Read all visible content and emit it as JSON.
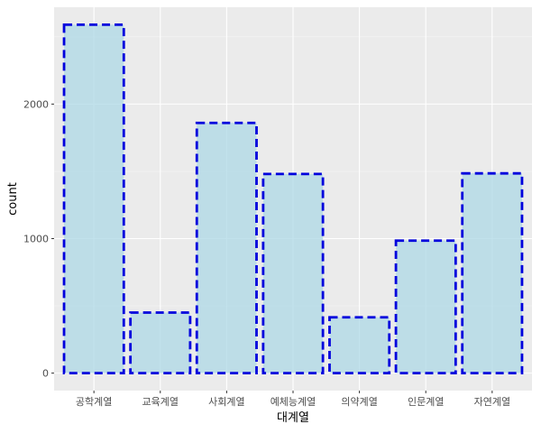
{
  "chart_data": {
    "type": "bar",
    "categories": [
      "공학계열",
      "교육계열",
      "사회계열",
      "예체능계열",
      "의약계열",
      "인문계열",
      "자연계열"
    ],
    "values": [
      2590,
      450,
      1860,
      1480,
      415,
      985,
      1485
    ],
    "xlabel": "대계열",
    "ylabel": "count",
    "ylim": [
      -130,
      2720
    ],
    "yticks": [
      0,
      1000,
      2000
    ],
    "grid": true,
    "colors": {
      "panel_background": "#ebebeb",
      "grid_major": "#ffffff",
      "grid_minor": "#f5f5f5",
      "bar_fill": "#add8e6",
      "bar_outline": "#0000dd"
    }
  }
}
